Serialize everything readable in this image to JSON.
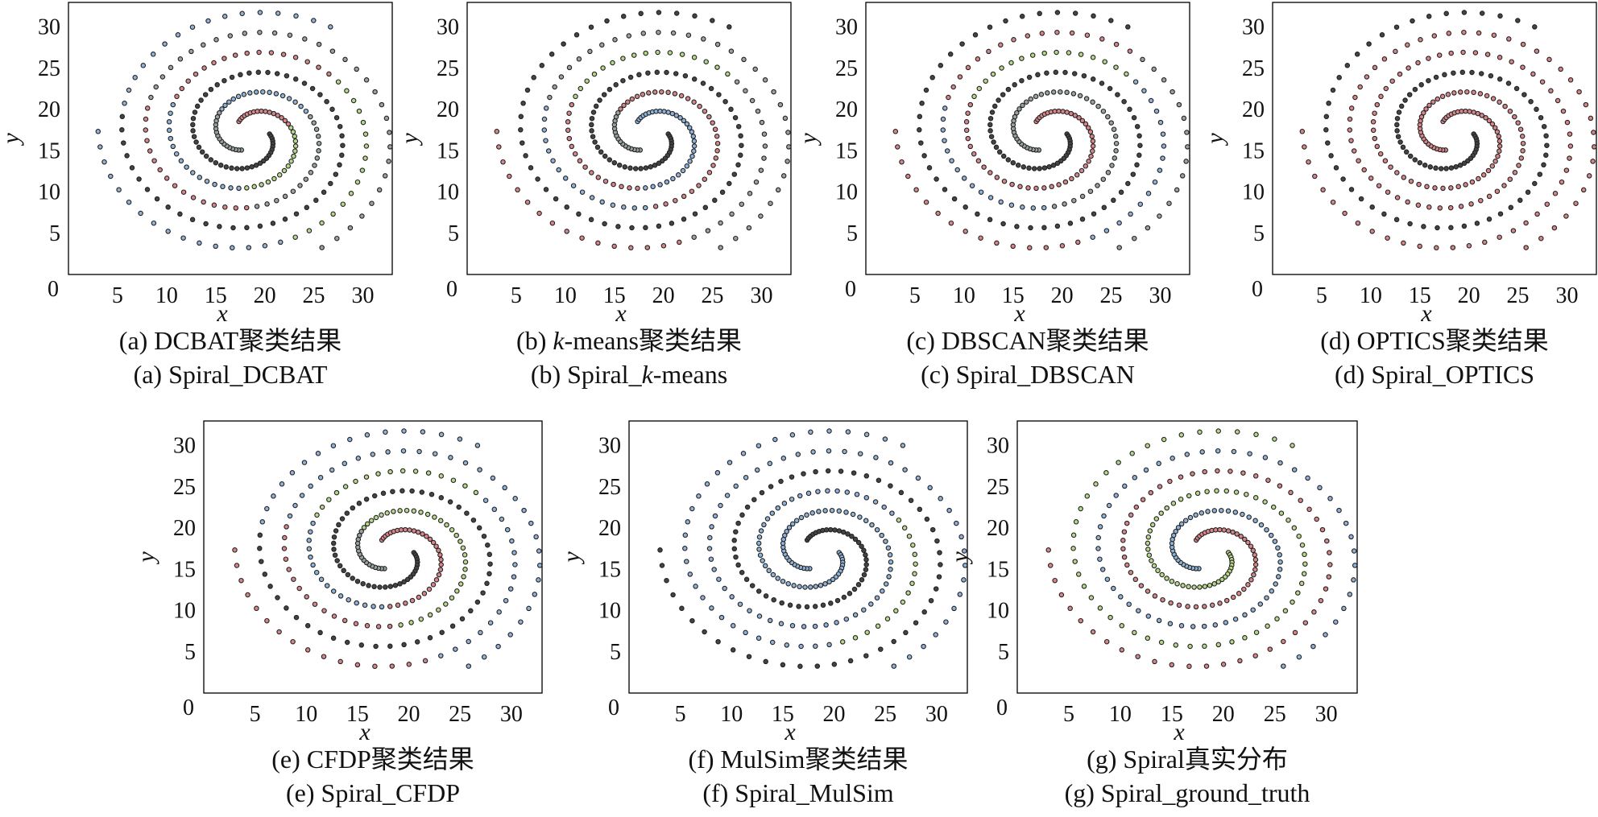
{
  "colors": {
    "red": "#d9868a",
    "blue": "#8fb3d9",
    "green": "#b8d98a",
    "dark": "#444444",
    "gray": "#9aa3a3",
    "stroke": "#222222"
  },
  "chart_data": [
    {
      "type": "scatter",
      "xlabel": "x",
      "ylabel": "y",
      "xlim": [
        0,
        33
      ],
      "ylim": [
        0,
        33
      ],
      "xticks": [
        "5",
        "10",
        "15",
        "20",
        "25",
        "30"
      ],
      "yticks": [
        "5",
        "10",
        "15",
        "20",
        "25",
        "30"
      ],
      "origin_label": "0",
      "caption_cn": "(a) DCBAT聚类结果",
      "caption_en": "(a) Spiral_DCBAT",
      "segment_colors": {
        "outer": [
          "gray",
          "blue",
          "gray",
          "red",
          "gray",
          "gray"
        ],
        "middle": [
          "red",
          "green",
          "blue",
          "red",
          "green",
          "blue"
        ],
        "inner": [
          "dark",
          "dark",
          "dark",
          "dark",
          "dark",
          "blue"
        ]
      }
    },
    {
      "type": "scatter",
      "xlabel": "x",
      "ylabel": "y",
      "xlim": [
        0,
        33
      ],
      "ylim": [
        0,
        33
      ],
      "xticks": [
        "5",
        "10",
        "15",
        "20",
        "25",
        "30"
      ],
      "yticks": [
        "5",
        "10",
        "15",
        "20",
        "25",
        "30"
      ],
      "origin_label": "0",
      "caption_cn_prefix": "(b) ",
      "caption_cn_italic": "k",
      "caption_cn_suffix": "-means聚类结果",
      "caption_en_prefix": "(b) Spiral_",
      "caption_en_italic": "k",
      "caption_en_suffix": "-means",
      "segment_colors": {
        "outer": [
          "gray",
          "red",
          "red",
          "blue",
          "gray",
          "gray"
        ],
        "middle": [
          "blue",
          "blue",
          "red",
          "green",
          "gray",
          "red"
        ],
        "inner": [
          "dark",
          "dark",
          "dark",
          "dark",
          "dark",
          "dark"
        ]
      }
    },
    {
      "type": "scatter",
      "xlabel": "x",
      "ylabel": "y",
      "xlim": [
        0,
        33
      ],
      "ylim": [
        0,
        33
      ],
      "xticks": [
        "5",
        "10",
        "15",
        "20",
        "25",
        "30"
      ],
      "yticks": [
        "5",
        "10",
        "15",
        "20",
        "25",
        "30"
      ],
      "origin_label": "0",
      "caption_cn": "(c) DBSCAN聚类结果",
      "caption_en": "(c) Spiral_DBSCAN",
      "segment_colors": {
        "outer": [
          "gray",
          "gray",
          "gray",
          "blue",
          "red",
          "gray"
        ],
        "middle": [
          "red",
          "red",
          "red",
          "green",
          "blue",
          "red"
        ],
        "inner": [
          "dark",
          "dark",
          "dark",
          "dark",
          "dark",
          "dark"
        ]
      }
    },
    {
      "type": "scatter",
      "xlabel": "x",
      "ylabel": "y",
      "xlim": [
        0,
        33
      ],
      "ylim": [
        0,
        33
      ],
      "xticks": [
        "5",
        "10",
        "15",
        "20",
        "25",
        "30"
      ],
      "yticks": [
        "5",
        "10",
        "15",
        "20",
        "25",
        "30"
      ],
      "origin_label": "0",
      "caption_cn": "(d) OPTICS聚类结果",
      "caption_en": "(d) Spiral_OPTICS",
      "segment_colors": {
        "outer": [
          "red",
          "red",
          "red",
          "red",
          "red",
          "red"
        ],
        "middle": [
          "red",
          "red",
          "red",
          "red",
          "red",
          "red"
        ],
        "inner": [
          "dark",
          "dark",
          "dark",
          "dark",
          "dark",
          "dark"
        ]
      }
    },
    {
      "type": "scatter",
      "xlabel": "x",
      "ylabel": "y",
      "xlim": [
        0,
        33
      ],
      "ylim": [
        0,
        33
      ],
      "xticks": [
        "5",
        "10",
        "15",
        "20",
        "25",
        "30"
      ],
      "yticks": [
        "5",
        "10",
        "15",
        "20",
        "25",
        "30"
      ],
      "origin_label": "0",
      "caption_cn": "(e) CFDP聚类结果",
      "caption_en": "(e) Spiral_CFDP",
      "segment_colors": {
        "outer": [
          "gray",
          "green",
          "green",
          "red",
          "blue",
          "blue"
        ],
        "middle": [
          "red",
          "red",
          "blue",
          "green",
          "blue",
          "red"
        ],
        "inner": [
          "dark",
          "dark",
          "dark",
          "dark",
          "dark",
          "blue"
        ]
      }
    },
    {
      "type": "scatter",
      "xlabel": "x",
      "ylabel": "y",
      "xlim": [
        0,
        33
      ],
      "ylim": [
        0,
        33
      ],
      "xticks": [
        "5",
        "10",
        "15",
        "20",
        "25",
        "30"
      ],
      "yticks": [
        "5",
        "10",
        "15",
        "20",
        "25",
        "30"
      ],
      "origin_label": "0",
      "caption_cn": "(f) MulSim聚类结果",
      "caption_en": "(f) Spiral_MulSim",
      "segment_colors": {
        "outer": [
          "blue",
          "blue",
          "blue",
          "blue",
          "blue",
          "blue"
        ],
        "middle": [
          "dark",
          "dark",
          "dark",
          "dark",
          "dark",
          "dark"
        ],
        "inner": [
          "blue",
          "blue",
          "blue",
          "green",
          "blue",
          "blue"
        ]
      }
    },
    {
      "type": "scatter",
      "xlabel": "x",
      "ylabel": "y",
      "xlim": [
        0,
        33
      ],
      "ylim": [
        0,
        33
      ],
      "xticks": [
        "5",
        "10",
        "15",
        "20",
        "25",
        "30"
      ],
      "yticks": [
        "5",
        "10",
        "15",
        "20",
        "25",
        "30"
      ],
      "origin_label": "0",
      "caption_cn": "(g) Spiral真实分布",
      "caption_en": "(g) Spiral_ground_truth",
      "segment_colors": {
        "outer": [
          "blue",
          "blue",
          "blue",
          "blue",
          "blue",
          "blue"
        ],
        "middle": [
          "red",
          "red",
          "red",
          "red",
          "red",
          "red"
        ],
        "inner": [
          "green",
          "green",
          "green",
          "green",
          "green",
          "green"
        ]
      }
    }
  ]
}
